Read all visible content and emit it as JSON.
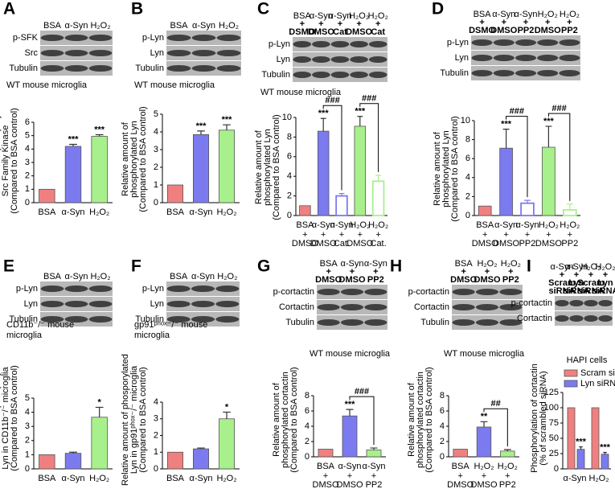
{
  "chart_data": [
    {
      "type": "bar",
      "panel": "A",
      "blot_lanes": [
        [
          "BSA",
          "α-Syn",
          "H₂O₂"
        ]
      ],
      "blot_rows": [
        "p-SFK",
        "Src",
        "Tubulin"
      ],
      "caption": [
        "WT mouse microglia"
      ],
      "ylabel": [
        "Relative amount of phosporylated",
        "Src Family Kinase",
        "(Compared to BSA control)"
      ],
      "categories": [
        "BSA",
        "α-Syn",
        "H₂O₂"
      ],
      "x_rows": [],
      "values": [
        1,
        4.2,
        4.95
      ],
      "errors": [
        null,
        0.15,
        0.12
      ],
      "significance": [
        null,
        "***",
        "***"
      ],
      "bracket_labels": [
        null,
        null,
        null
      ],
      "colors": [
        "#f08080",
        "#7b7bef",
        "#a8f08c"
      ],
      "filled": [
        true,
        true,
        true
      ],
      "ylim": [
        0,
        6
      ],
      "yticks": [
        0,
        1,
        2,
        3,
        4,
        5,
        6
      ]
    },
    {
      "type": "bar",
      "panel": "B",
      "blot_lanes": [
        [
          "BSA",
          "α-Syn",
          "H₂O₂"
        ]
      ],
      "blot_rows": [
        "p-Lyn",
        "Lyn",
        "Tubulin"
      ],
      "caption": [
        "WT mouse microglia"
      ],
      "ylabel": [
        "Relative amount of",
        "phosphorylated Lyn",
        "(Compared to BSA control)"
      ],
      "categories": [
        "BSA",
        "α-Syn",
        "H₂O₂"
      ],
      "x_rows": [],
      "values": [
        1,
        3.85,
        4.1
      ],
      "errors": [
        null,
        0.2,
        0.3
      ],
      "significance": [
        null,
        "***",
        "***"
      ],
      "bracket_labels": [
        null,
        null,
        null
      ],
      "colors": [
        "#f08080",
        "#7b7bef",
        "#a8f08c"
      ],
      "filled": [
        true,
        true,
        true
      ],
      "ylim": [
        0,
        5
      ],
      "yticks": [
        0,
        1,
        2,
        3,
        4,
        5
      ]
    },
    {
      "type": "bar",
      "panel": "C",
      "blot_lanes": [
        [
          "BSA",
          "α-Syn",
          "α-Syn",
          "H₂O₂",
          "H₂O₂"
        ],
        [
          "+",
          "+",
          "+",
          "+",
          "+"
        ],
        [
          "DSMO",
          "DMSO",
          "Cat",
          "DMSO",
          "Cat"
        ]
      ],
      "blot_rows": [
        "p-Lyn",
        "Lyn",
        "Tubulin"
      ],
      "caption": [
        "WT mouse microglia"
      ],
      "ylabel": [
        "Relative amount of",
        "phosphorylated Lyn",
        "(Compared to BSA control)"
      ],
      "categories": [
        "BSA",
        "α-Syn",
        "α-Syn",
        "H₂O₂",
        "H₂O₂"
      ],
      "x_rows": [
        [
          "+",
          "+",
          "+",
          "+",
          "+"
        ],
        [
          "DMSO",
          "DMSO",
          "Cat.",
          "DMSO",
          "Cat."
        ]
      ],
      "values": [
        1,
        8.6,
        2.0,
        9.1,
        3.5
      ],
      "errors": [
        null,
        1.3,
        0.25,
        1.0,
        0.6
      ],
      "significance": [
        null,
        "***",
        null,
        "***",
        null
      ],
      "bracket_labels": [
        null,
        null,
        "###",
        null,
        "###"
      ],
      "colors": [
        "#f08080",
        "#7b7bef",
        "#7b7bef",
        "#a8f08c",
        "#a8f08c"
      ],
      "filled": [
        true,
        true,
        false,
        true,
        false
      ],
      "ylim": [
        0,
        10
      ],
      "yticks": [
        0,
        2,
        4,
        6,
        8,
        10
      ]
    },
    {
      "type": "bar",
      "panel": "D",
      "blot_lanes": [
        [
          "BSA",
          "α-Syn",
          "α-Syn",
          "H₂O₂",
          "H₂O₂"
        ],
        [
          "+",
          "+",
          "+",
          "+",
          "+"
        ],
        [
          "DSMO",
          "DMSO",
          "PP2",
          "DMSO",
          "PP2"
        ]
      ],
      "blot_rows": [
        "p-Lyn",
        "Lyn",
        "Tubulin"
      ],
      "caption": [],
      "ylabel": [
        "Relative amount of",
        "phosphorylated Lyn",
        "(Compared to BSA control)"
      ],
      "categories": [
        "BSA",
        "α-Syn",
        "α-Syn",
        "H₂O₂",
        "H₂O₂"
      ],
      "x_rows": [
        [
          "+",
          "+",
          "+",
          "+",
          "+"
        ],
        [
          "DMSO",
          "DMSO",
          "PP2",
          "DMSO",
          "PP2"
        ]
      ],
      "values": [
        1,
        7.1,
        1.3,
        7.2,
        0.6
      ],
      "errors": [
        null,
        2.0,
        0.3,
        2.2,
        0.6
      ],
      "significance": [
        null,
        "***",
        null,
        "***",
        null
      ],
      "bracket_labels": [
        null,
        null,
        "###",
        null,
        "###"
      ],
      "colors": [
        "#f08080",
        "#7b7bef",
        "#7b7bef",
        "#a8f08c",
        "#a8f08c"
      ],
      "filled": [
        true,
        true,
        false,
        true,
        false
      ],
      "ylim": [
        0,
        10
      ],
      "yticks": [
        0,
        2,
        4,
        6,
        8,
        10
      ]
    },
    {
      "type": "bar",
      "panel": "E",
      "blot_lanes": [
        [
          "BSA",
          "α-Syn",
          "H₂O₂"
        ]
      ],
      "blot_rows": [
        "p-Lyn",
        "Lyn",
        "Tubulin"
      ],
      "caption": [
        "CD11b⁻/⁻ mouse",
        "microglia"
      ],
      "ylabel": [
        "Relative amount of phosporylated",
        "Lyn in CD11b⁻/⁻ microglia",
        "(Compared to BSA control)"
      ],
      "categories": [
        "BSA",
        "α-Syn",
        "H₂O₂"
      ],
      "x_rows": [],
      "values": [
        1,
        1.1,
        3.65
      ],
      "errors": [
        null,
        0.08,
        0.7
      ],
      "significance": [
        null,
        null,
        "*"
      ],
      "bracket_labels": [
        null,
        null,
        null
      ],
      "colors": [
        "#f08080",
        "#7b7bef",
        "#a8f08c"
      ],
      "filled": [
        true,
        true,
        true
      ],
      "ylim": [
        0,
        5
      ],
      "yticks": [
        0,
        1,
        2,
        3,
        4,
        5
      ]
    },
    {
      "type": "bar",
      "panel": "F",
      "blot_lanes": [
        [
          "BSA",
          "α-Syn",
          "H₂O₂"
        ]
      ],
      "blot_rows": [
        "p-Lyn",
        "Lyn",
        "Tubulin"
      ],
      "caption": [
        "gp91ᵖʰᵒˣ⁻/⁻ mouse",
        "microglia"
      ],
      "ylabel": [
        "Relative amount of phosporylated",
        "Lyn in gp91ᵖʰᵒˣ⁻/⁻ microglia",
        "(Compared to BSA control)"
      ],
      "categories": [
        "BSA",
        "α-Syn",
        "H₂O₂"
      ],
      "x_rows": [],
      "values": [
        1,
        1.2,
        3.0
      ],
      "errors": [
        null,
        0.05,
        0.4
      ],
      "significance": [
        null,
        null,
        "*"
      ],
      "bracket_labels": [
        null,
        null,
        null
      ],
      "colors": [
        "#f08080",
        "#7b7bef",
        "#a8f08c"
      ],
      "filled": [
        true,
        true,
        true
      ],
      "ylim": [
        0,
        4
      ],
      "yticks": [
        0,
        1,
        2,
        3,
        4
      ]
    },
    {
      "type": "bar",
      "panel": "G",
      "blot_lanes": [
        [
          "BSA",
          "α-Syn",
          "α-Syn"
        ],
        [
          "+",
          "+",
          "+"
        ],
        [
          "DMSO",
          "DMSO",
          "PP2"
        ]
      ],
      "blot_rows": [
        "p-cortactin",
        "Cortactin",
        "Tubulin"
      ],
      "caption": [
        "WT mouse microglia"
      ],
      "ylabel": [
        "Relative amount of",
        "phosphorylated cortactin",
        "(Compared to BSA control)"
      ],
      "categories": [
        "BSA",
        "α-Syn",
        "α-Syn"
      ],
      "x_rows": [
        [
          "+",
          "+",
          "+"
        ],
        [
          "DMSO",
          "DMSO",
          "PP2"
        ]
      ],
      "values": [
        1,
        5.35,
        0.9
      ],
      "errors": [
        null,
        0.85,
        0.25
      ],
      "significance": [
        null,
        "***",
        null
      ],
      "bracket_labels": [
        null,
        null,
        "###"
      ],
      "colors": [
        "#f08080",
        "#7b7bef",
        "#a8f08c"
      ],
      "filled": [
        true,
        true,
        true
      ],
      "ylim": [
        0,
        8
      ],
      "yticks": [
        0,
        2,
        4,
        6,
        8
      ]
    },
    {
      "type": "bar",
      "panel": "H",
      "blot_lanes": [
        [
          "BSA",
          "H₂O₂",
          "H₂O₂"
        ],
        [
          "+",
          "+",
          "+"
        ],
        [
          "DMSO",
          "DMSO",
          "PP2"
        ]
      ],
      "blot_rows": [
        "p-cortactin",
        "Cortactin",
        "Tubulin"
      ],
      "caption": [
        "WT mouse microglia"
      ],
      "ylabel": [
        "Relative amount of",
        "phosphorylated cortactin",
        "(Compared to BSA control)"
      ],
      "categories": [
        "BSA",
        "H₂O₂",
        "H₂O₂"
      ],
      "x_rows": [
        [
          "+",
          "+",
          "+"
        ],
        [
          "DMSO",
          "DMSO",
          "PP2"
        ]
      ],
      "values": [
        1,
        3.9,
        0.75
      ],
      "errors": [
        null,
        0.7,
        0.2
      ],
      "significance": [
        null,
        "**",
        null
      ],
      "bracket_labels": [
        null,
        null,
        "##"
      ],
      "colors": [
        "#f08080",
        "#7b7bef",
        "#a8f08c"
      ],
      "filled": [
        true,
        true,
        true
      ],
      "ylim": [
        0,
        8
      ],
      "yticks": [
        0,
        2,
        4,
        6,
        8
      ]
    },
    {
      "type": "grouped_bar",
      "panel": "I",
      "blot_lanes": [
        [
          "α-Syn",
          "α-Syn",
          "H₂O₂",
          "H₂O₂"
        ],
        [
          "+",
          "+",
          "+",
          "+"
        ],
        [
          "Scram",
          "Lyn",
          "Scram",
          "Lyn"
        ],
        [
          "siRNA",
          "siRNA",
          "siRNA",
          "siRNA"
        ]
      ],
      "blot_rows": [
        "p-cortactin",
        "Cortactin"
      ],
      "caption": [
        "HAPI cells"
      ],
      "ylabel": [
        "Phosphorylation of cortactin",
        "(% of scrambled siRNA)"
      ],
      "categories": [
        "α-Syn",
        "H₂O₂"
      ],
      "x_rows": [],
      "series": [
        {
          "name": "Scram siRNA",
          "color": "#f08080",
          "values": [
            100,
            100
          ],
          "errors": [
            null,
            null
          ],
          "significance": [
            null,
            null
          ]
        },
        {
          "name": "Lyn siRNA",
          "color": "#7b7bef",
          "values": [
            32,
            24
          ],
          "errors": [
            4,
            3
          ],
          "significance": [
            "***",
            "***"
          ]
        }
      ],
      "legend": "top",
      "ylim": [
        0,
        125
      ],
      "yticks": [
        0,
        25,
        50,
        75,
        100,
        125
      ]
    }
  ]
}
